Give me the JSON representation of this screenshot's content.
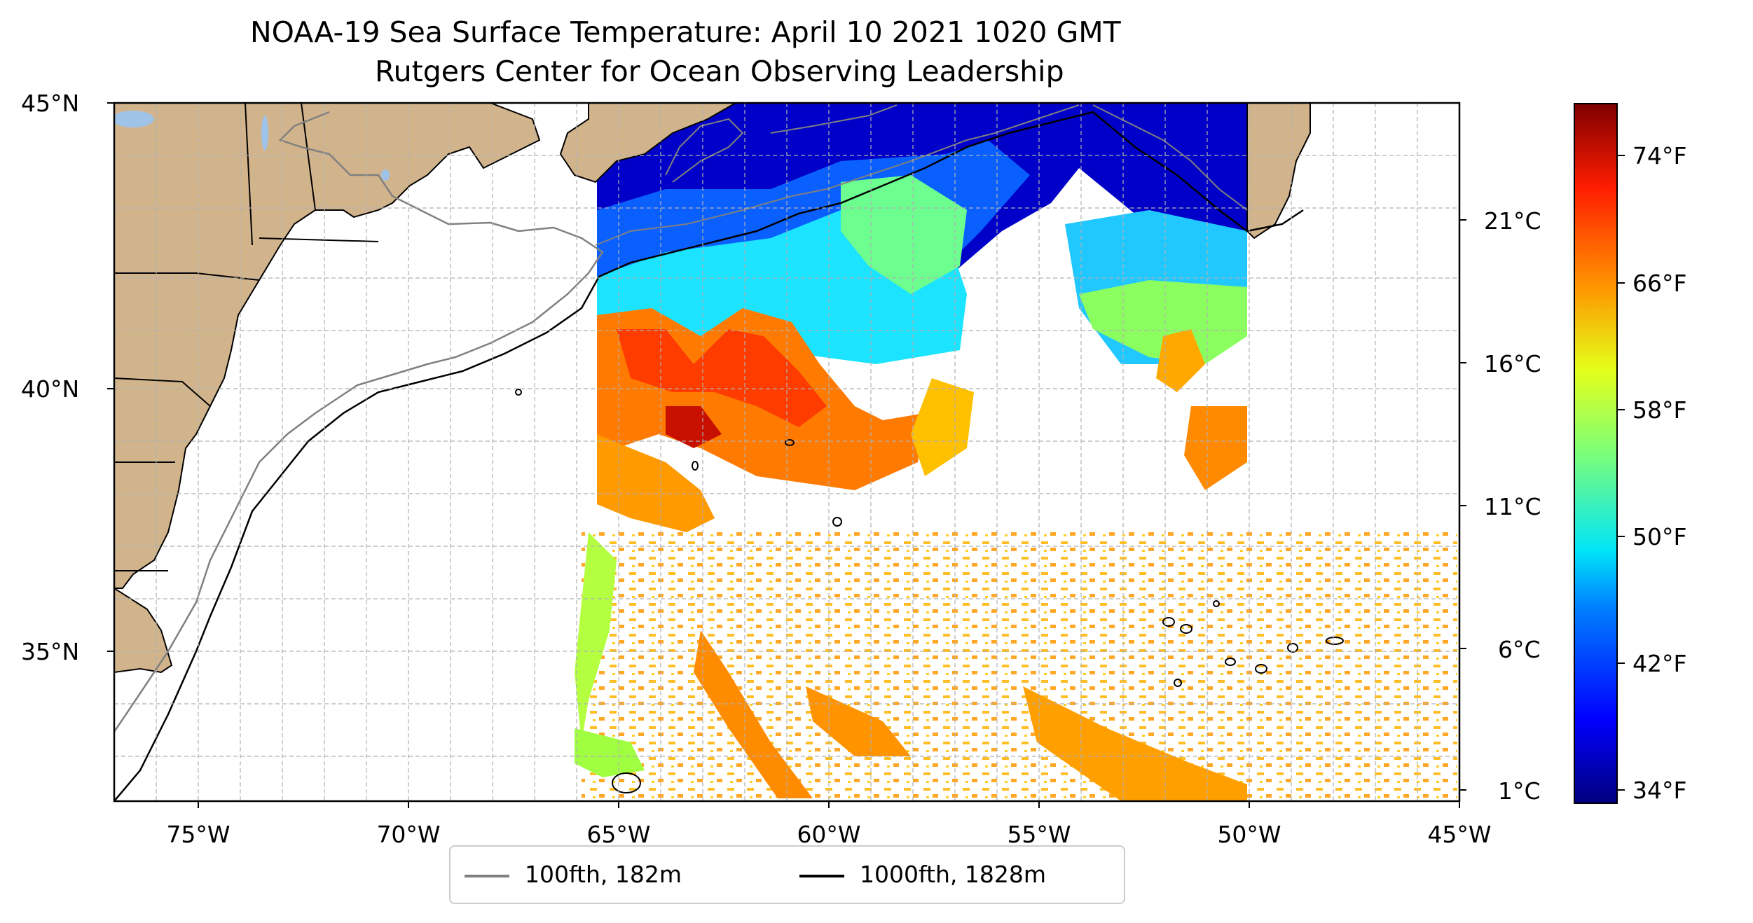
{
  "title": "NOAA-19 Sea Surface Temperature: April 10 2021 1020 GMT",
  "subtitle": "Rutgers Center for Ocean Observing Leadership",
  "map": {
    "lat_labels": [
      "45°N",
      "40°N",
      "35°N"
    ],
    "lon_labels": [
      "75°W",
      "70°W",
      "65°W",
      "60°W",
      "55°W",
      "50°W",
      "45°W"
    ],
    "extent": {
      "lon": [
        -77,
        -45
      ],
      "lat": [
        32.3,
        45
      ]
    },
    "land_color": "#d2b48c",
    "lake_color": "#9fc3e8",
    "ocean_color": "#ffffff",
    "grid": true
  },
  "legend": {
    "items": [
      {
        "label": "100fth, 182m",
        "color": "#808080"
      },
      {
        "label": "1000fth, 1828m",
        "color": "#000000"
      }
    ]
  },
  "colorbar": {
    "celsius_ticks": [
      "21°C",
      "16°C",
      "11°C",
      "6°C",
      "1°C"
    ],
    "fahrenheit_ticks": [
      "74°F",
      "66°F",
      "58°F",
      "50°F",
      "42°F",
      "34°F"
    ],
    "colormap": "jet"
  },
  "chart_data": {
    "type": "heatmap",
    "title": "NOAA-19 Sea Surface Temperature: April 10 2021 1020 GMT",
    "subtitle": "Rutgers Center for Ocean Observing Leadership",
    "x_ticks": [
      "75°W",
      "70°W",
      "65°W",
      "60°W",
      "55°W",
      "50°W",
      "45°W"
    ],
    "y_ticks": [
      "45°N",
      "40°N",
      "35°N"
    ],
    "colorbar_range_F": [
      33,
      77
    ],
    "grid": true,
    "legend_position": "bottom-center"
  }
}
